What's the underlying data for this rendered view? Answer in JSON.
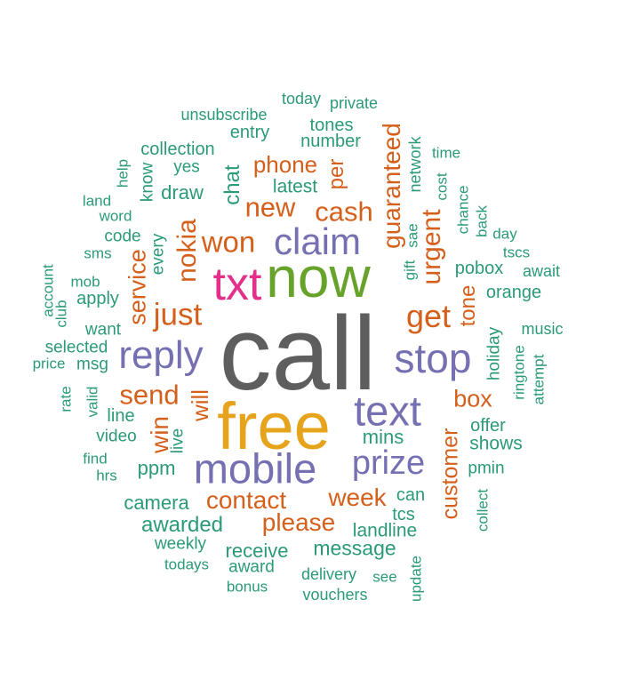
{
  "word_cloud": {
    "colors": {
      "gray": "#5e5e5e",
      "orange": "#d4601c",
      "gold": "#e6a31c",
      "green": "#67a32b",
      "purple": "#7470b1",
      "pink": "#e3308b",
      "teal": "#2b9a79"
    },
    "words": [
      {
        "text": "call",
        "color": "gray"
      },
      {
        "text": "free",
        "color": "gold"
      },
      {
        "text": "now",
        "color": "green"
      },
      {
        "text": "txt",
        "color": "pink"
      },
      {
        "text": "mobile",
        "color": "purple"
      },
      {
        "text": "text",
        "color": "purple"
      },
      {
        "text": "stop",
        "color": "purple"
      },
      {
        "text": "reply",
        "color": "purple"
      },
      {
        "text": "claim",
        "color": "purple"
      },
      {
        "text": "prize",
        "color": "purple"
      },
      {
        "text": "get",
        "color": "orange"
      },
      {
        "text": "just",
        "color": "orange"
      },
      {
        "text": "won",
        "color": "orange"
      },
      {
        "text": "new",
        "color": "orange"
      },
      {
        "text": "cash",
        "color": "orange"
      },
      {
        "text": "send",
        "color": "orange"
      },
      {
        "text": "contact",
        "color": "orange"
      },
      {
        "text": "please",
        "color": "orange"
      },
      {
        "text": "week",
        "color": "orange"
      },
      {
        "text": "box",
        "color": "orange"
      },
      {
        "text": "phone",
        "color": "orange"
      },
      {
        "text": "nokia",
        "color": "orange"
      },
      {
        "text": "urgent",
        "color": "orange"
      },
      {
        "text": "guaranteed",
        "color": "orange"
      },
      {
        "text": "service",
        "color": "orange"
      },
      {
        "text": "customer",
        "color": "orange"
      },
      {
        "text": "win",
        "color": "orange"
      },
      {
        "text": "will",
        "color": "orange"
      },
      {
        "text": "tone",
        "color": "orange"
      },
      {
        "text": "per",
        "color": "orange"
      },
      {
        "text": "awarded",
        "color": "teal"
      },
      {
        "text": "message",
        "color": "teal"
      },
      {
        "text": "receive",
        "color": "teal"
      },
      {
        "text": "camera",
        "color": "teal"
      },
      {
        "text": "landline",
        "color": "teal"
      },
      {
        "text": "mins",
        "color": "teal"
      },
      {
        "text": "shows",
        "color": "teal"
      },
      {
        "text": "offer",
        "color": "teal"
      },
      {
        "text": "pobox",
        "color": "teal"
      },
      {
        "text": "orange",
        "color": "teal"
      },
      {
        "text": "latest",
        "color": "teal"
      },
      {
        "text": "number",
        "color": "teal"
      },
      {
        "text": "tones",
        "color": "teal"
      },
      {
        "text": "entry",
        "color": "teal"
      },
      {
        "text": "collection",
        "color": "teal"
      },
      {
        "text": "unsubscribe",
        "color": "teal"
      },
      {
        "text": "today",
        "color": "teal"
      },
      {
        "text": "private",
        "color": "teal"
      },
      {
        "text": "draw",
        "color": "teal"
      },
      {
        "text": "chat",
        "color": "teal"
      },
      {
        "text": "yes",
        "color": "teal"
      },
      {
        "text": "know",
        "color": "teal"
      },
      {
        "text": "help",
        "color": "teal"
      },
      {
        "text": "land",
        "color": "teal"
      },
      {
        "text": "word",
        "color": "teal"
      },
      {
        "text": "code",
        "color": "teal"
      },
      {
        "text": "sms",
        "color": "teal"
      },
      {
        "text": "every",
        "color": "teal"
      },
      {
        "text": "mob",
        "color": "teal"
      },
      {
        "text": "account",
        "color": "teal"
      },
      {
        "text": "club",
        "color": "teal"
      },
      {
        "text": "apply",
        "color": "teal"
      },
      {
        "text": "want",
        "color": "teal"
      },
      {
        "text": "selected",
        "color": "teal"
      },
      {
        "text": "price",
        "color": "teal"
      },
      {
        "text": "msg",
        "color": "teal"
      },
      {
        "text": "rate",
        "color": "teal"
      },
      {
        "text": "valid",
        "color": "teal"
      },
      {
        "text": "line",
        "color": "teal"
      },
      {
        "text": "video",
        "color": "teal"
      },
      {
        "text": "live",
        "color": "teal"
      },
      {
        "text": "find",
        "color": "teal"
      },
      {
        "text": "hrs",
        "color": "teal"
      },
      {
        "text": "ppm",
        "color": "teal"
      },
      {
        "text": "weekly",
        "color": "teal"
      },
      {
        "text": "todays",
        "color": "teal"
      },
      {
        "text": "award",
        "color": "teal"
      },
      {
        "text": "bonus",
        "color": "teal"
      },
      {
        "text": "delivery",
        "color": "teal"
      },
      {
        "text": "vouchers",
        "color": "teal"
      },
      {
        "text": "see",
        "color": "teal"
      },
      {
        "text": "update",
        "color": "teal"
      },
      {
        "text": "can",
        "color": "teal"
      },
      {
        "text": "tcs",
        "color": "teal"
      },
      {
        "text": "collect",
        "color": "teal"
      },
      {
        "text": "pmin",
        "color": "teal"
      },
      {
        "text": "holiday",
        "color": "teal"
      },
      {
        "text": "ringtone",
        "color": "teal"
      },
      {
        "text": "attempt",
        "color": "teal"
      },
      {
        "text": "music",
        "color": "teal"
      },
      {
        "text": "await",
        "color": "teal"
      },
      {
        "text": "tscs",
        "color": "teal"
      },
      {
        "text": "day",
        "color": "teal"
      },
      {
        "text": "back",
        "color": "teal"
      },
      {
        "text": "chance",
        "color": "teal"
      },
      {
        "text": "cost",
        "color": "teal"
      },
      {
        "text": "time",
        "color": "teal"
      },
      {
        "text": "network",
        "color": "teal"
      },
      {
        "text": "sae",
        "color": "teal"
      },
      {
        "text": "gift",
        "color": "teal"
      }
    ]
  }
}
